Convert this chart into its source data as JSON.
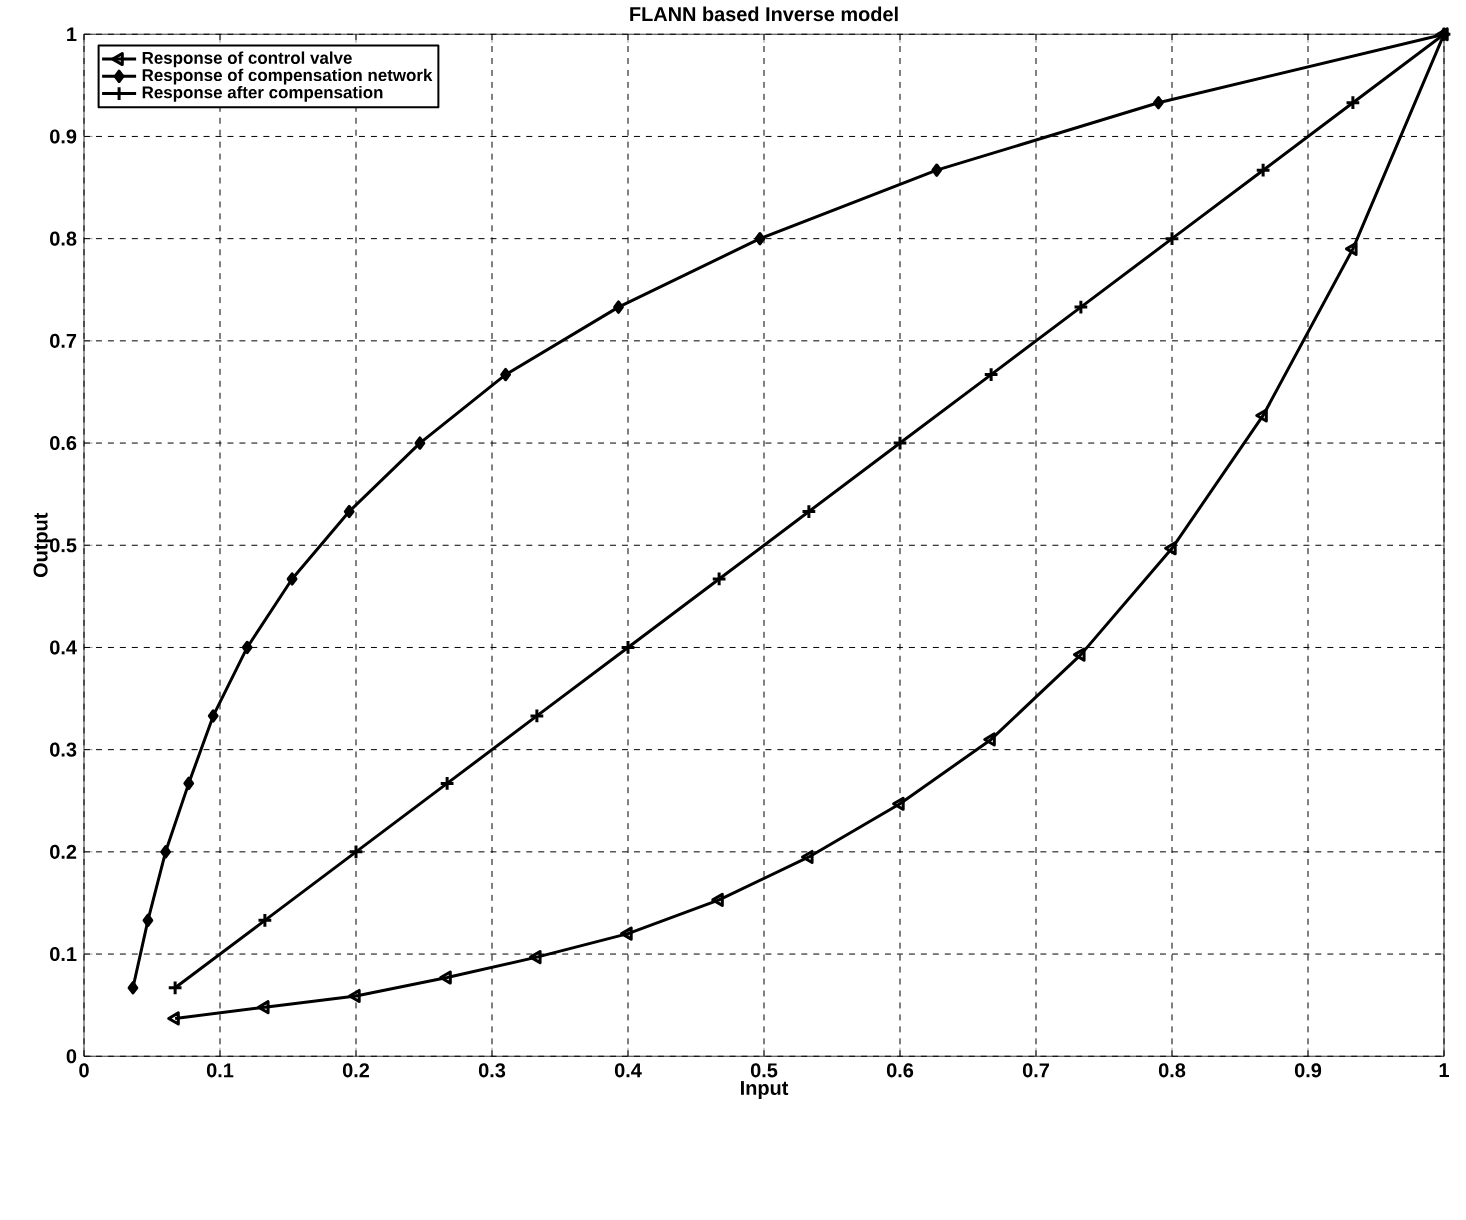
{
  "chart_data": {
    "type": "line",
    "title": "FLANN based Inverse model",
    "xlabel": "Input",
    "ylabel": "Output",
    "xlim": [
      0,
      1
    ],
    "ylim": [
      0,
      1
    ],
    "xticks": [
      0,
      0.1,
      0.2,
      0.3,
      0.4,
      0.5,
      0.6,
      0.7,
      0.8,
      0.9,
      1
    ],
    "yticks": [
      0,
      0.1,
      0.2,
      0.3,
      0.4,
      0.5,
      0.6,
      0.7,
      0.8,
      0.9,
      1
    ],
    "grid": true,
    "legend": "top left",
    "line_style": "solid",
    "series": [
      {
        "name": "Response of control valve",
        "color": "#000000",
        "marker": "triangle",
        "x": [
          0.067,
          0.133,
          0.2,
          0.267,
          0.333,
          0.4,
          0.467,
          0.533,
          0.6,
          0.667,
          0.733,
          0.8,
          0.867,
          0.933,
          1
        ],
        "values": [
          0.037,
          0.048,
          0.059,
          0.077,
          0.097,
          0.12,
          0.153,
          0.195,
          0.247,
          0.31,
          0.393,
          0.497,
          0.627,
          0.79,
          1
        ]
      },
      {
        "name": "Response of compensation network",
        "color": "#000000",
        "marker": "diamond",
        "x": [
          0.036,
          0.047,
          0.06,
          0.077,
          0.095,
          0.12,
          0.153,
          0.195,
          0.247,
          0.31,
          0.393,
          0.497,
          0.627,
          0.79,
          1
        ],
        "values": [
          0.067,
          0.133,
          0.2,
          0.267,
          0.333,
          0.4,
          0.467,
          0.533,
          0.6,
          0.667,
          0.733,
          0.8,
          0.867,
          0.933,
          1
        ]
      },
      {
        "name": "Response after compensation",
        "color": "#000000",
        "marker": "cross",
        "x": [
          0.067,
          0.133,
          0.2,
          0.267,
          0.333,
          0.4,
          0.467,
          0.533,
          0.6,
          0.667,
          0.733,
          0.8,
          0.867,
          0.933,
          1
        ],
        "values": [
          0.067,
          0.133,
          0.2,
          0.267,
          0.333,
          0.4,
          0.467,
          0.533,
          0.6,
          0.667,
          0.733,
          0.8,
          0.867,
          0.933,
          1
        ]
      }
    ]
  }
}
